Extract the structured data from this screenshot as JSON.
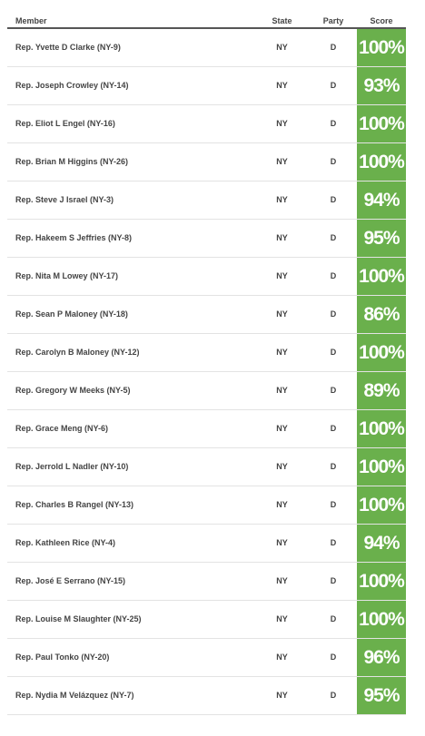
{
  "colors": {
    "score_bg": "#6ab04c",
    "score_text": "#ffffff",
    "header_rule": "#555555",
    "row_divider": "#e3e3e3",
    "text": "#444444"
  },
  "header": {
    "member": "Member",
    "state": "State",
    "party": "Party",
    "score": "Score"
  },
  "rows": [
    {
      "member": "Rep. Yvette D Clarke (NY-9)",
      "state": "NY",
      "party": "D",
      "score": "100%"
    },
    {
      "member": "Rep. Joseph Crowley (NY-14)",
      "state": "NY",
      "party": "D",
      "score": "93%"
    },
    {
      "member": "Rep. Eliot L Engel (NY-16)",
      "state": "NY",
      "party": "D",
      "score": "100%"
    },
    {
      "member": "Rep. Brian M Higgins (NY-26)",
      "state": "NY",
      "party": "D",
      "score": "100%"
    },
    {
      "member": "Rep. Steve J Israel (NY-3)",
      "state": "NY",
      "party": "D",
      "score": "94%"
    },
    {
      "member": "Rep. Hakeem S Jeffries (NY-8)",
      "state": "NY",
      "party": "D",
      "score": "95%"
    },
    {
      "member": "Rep. Nita M Lowey (NY-17)",
      "state": "NY",
      "party": "D",
      "score": "100%"
    },
    {
      "member": "Rep. Sean P Maloney (NY-18)",
      "state": "NY",
      "party": "D",
      "score": "86%"
    },
    {
      "member": "Rep. Carolyn B Maloney (NY-12)",
      "state": "NY",
      "party": "D",
      "score": "100%"
    },
    {
      "member": "Rep. Gregory W Meeks (NY-5)",
      "state": "NY",
      "party": "D",
      "score": "89%"
    },
    {
      "member": "Rep. Grace Meng (NY-6)",
      "state": "NY",
      "party": "D",
      "score": "100%"
    },
    {
      "member": "Rep. Jerrold L Nadler (NY-10)",
      "state": "NY",
      "party": "D",
      "score": "100%"
    },
    {
      "member": "Rep. Charles B Rangel (NY-13)",
      "state": "NY",
      "party": "D",
      "score": "100%"
    },
    {
      "member": "Rep. Kathleen Rice (NY-4)",
      "state": "NY",
      "party": "D",
      "score": "94%"
    },
    {
      "member": "Rep. José E Serrano (NY-15)",
      "state": "NY",
      "party": "D",
      "score": "100%"
    },
    {
      "member": "Rep. Louise M Slaughter (NY-25)",
      "state": "NY",
      "party": "D",
      "score": "100%"
    },
    {
      "member": "Rep. Paul Tonko (NY-20)",
      "state": "NY",
      "party": "D",
      "score": "96%"
    },
    {
      "member": "Rep. Nydia M Velázquez (NY-7)",
      "state": "NY",
      "party": "D",
      "score": "95%"
    }
  ]
}
